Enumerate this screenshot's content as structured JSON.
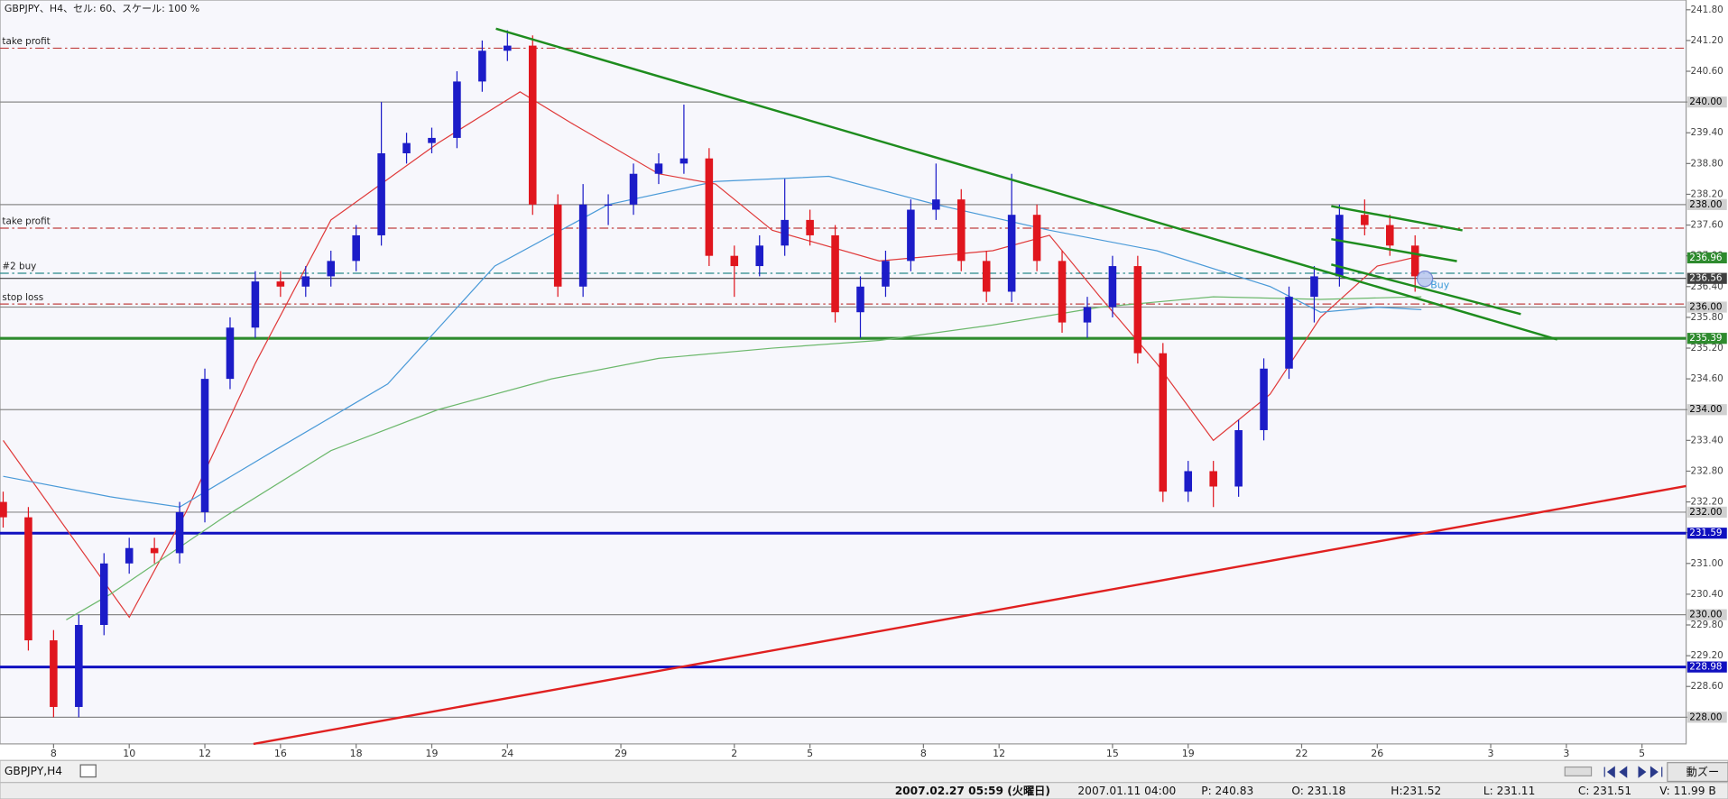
{
  "chart_data": {
    "type": "candlestick",
    "title": "GBPJPY、H4、セル: 60、スケール: 100 %",
    "up_color": "#1c1cc8",
    "down_color": "#e0161e",
    "x": [
      0,
      4,
      8,
      12,
      16,
      20,
      24,
      28,
      32,
      36,
      40,
      44,
      48,
      52,
      56,
      60,
      64,
      68,
      72,
      76,
      80,
      84,
      88,
      92,
      96,
      100,
      104,
      108,
      112,
      116,
      120,
      124,
      128,
      132,
      136,
      140,
      144,
      148,
      152,
      156,
      160,
      164,
      168,
      172,
      176,
      180,
      184,
      188,
      192,
      196,
      200,
      204,
      208,
      212,
      216,
      220,
      224
    ],
    "open": [
      232.2,
      231.9,
      229.5,
      228.2,
      229.8,
      231.0,
      231.3,
      231.2,
      232.0,
      234.6,
      235.6,
      236.5,
      236.4,
      236.6,
      236.9,
      237.4,
      239.0,
      239.2,
      239.3,
      240.4,
      241.0,
      241.1,
      238.0,
      236.4,
      238.0,
      238.0,
      238.6,
      238.8,
      238.9,
      237.0,
      236.8,
      237.2,
      237.7,
      237.4,
      235.9,
      236.4,
      236.9,
      237.9,
      238.1,
      236.9,
      236.3,
      237.8,
      236.9,
      235.7,
      236.0,
      236.8,
      235.1,
      232.4,
      232.8,
      232.5,
      233.6,
      234.8,
      236.2,
      236.6,
      237.8,
      237.6,
      237.2
    ],
    "high": [
      232.4,
      232.1,
      229.7,
      230.0,
      231.2,
      231.5,
      231.5,
      232.2,
      234.8,
      235.8,
      236.7,
      236.7,
      236.8,
      237.1,
      237.6,
      240.0,
      239.4,
      239.5,
      240.6,
      241.2,
      241.4,
      241.3,
      238.2,
      238.4,
      238.2,
      238.8,
      239.0,
      239.95,
      239.1,
      237.2,
      237.4,
      238.5,
      237.9,
      237.6,
      236.6,
      237.1,
      238.1,
      238.8,
      238.3,
      237.1,
      238.6,
      238.0,
      237.1,
      236.2,
      237.0,
      237.0,
      235.3,
      233.0,
      233.0,
      233.8,
      235.0,
      236.4,
      236.8,
      238.0,
      238.1,
      237.8,
      237.4
    ],
    "low": [
      231.7,
      229.3,
      228.0,
      228.0,
      229.6,
      230.8,
      231.0,
      231.0,
      231.8,
      234.4,
      235.4,
      236.2,
      236.2,
      236.4,
      236.7,
      237.2,
      238.8,
      239.0,
      239.1,
      240.2,
      240.8,
      237.8,
      236.2,
      236.2,
      237.6,
      237.8,
      238.4,
      238.6,
      236.8,
      236.2,
      236.6,
      237.0,
      237.2,
      235.7,
      235.4,
      236.2,
      236.7,
      237.7,
      236.7,
      236.1,
      236.1,
      236.7,
      235.5,
      235.4,
      235.8,
      234.9,
      232.2,
      232.2,
      232.1,
      232.3,
      233.4,
      234.6,
      235.7,
      236.4,
      237.4,
      237.0,
      236.3
    ],
    "close": [
      231.9,
      229.5,
      228.2,
      229.8,
      231.0,
      231.3,
      231.2,
      232.0,
      234.6,
      235.6,
      236.5,
      236.4,
      236.6,
      236.9,
      237.4,
      239.0,
      239.2,
      239.3,
      240.4,
      241.0,
      241.1,
      238.0,
      236.4,
      238.0,
      238.0,
      238.6,
      238.8,
      238.9,
      237.0,
      236.8,
      237.2,
      237.7,
      237.4,
      235.9,
      236.4,
      236.9,
      237.9,
      238.1,
      236.9,
      236.3,
      237.8,
      236.9,
      235.7,
      236.0,
      236.8,
      235.1,
      232.4,
      232.8,
      232.5,
      233.6,
      234.8,
      236.2,
      236.6,
      237.8,
      237.6,
      237.2,
      236.6
    ],
    "xlim": [
      -0.5,
      267
    ],
    "xticks": [
      {
        "value": 8,
        "label": "8"
      },
      {
        "value": 20,
        "label": "10"
      },
      {
        "value": 32,
        "label": "12"
      },
      {
        "value": 44,
        "label": "16"
      },
      {
        "value": 56,
        "label": "18"
      },
      {
        "value": 68,
        "label": "19"
      },
      {
        "value": 80,
        "label": "24"
      },
      {
        "value": 98,
        "label": "29"
      },
      {
        "value": 116,
        "label": "2"
      },
      {
        "value": 128,
        "label": "5"
      },
      {
        "value": 146,
        "label": "8"
      },
      {
        "value": 158,
        "label": "12"
      },
      {
        "value": 176,
        "label": "15"
      },
      {
        "value": 188,
        "label": "19"
      },
      {
        "value": 206,
        "label": "22"
      },
      {
        "value": 218,
        "label": "26"
      },
      {
        "value": 236,
        "label": "3"
      },
      {
        "value": 248,
        "label": "3"
      },
      {
        "value": 260,
        "label": "5"
      }
    ],
    "ylim": [
      227.48,
      241.99
    ],
    "yticks": [
      {
        "value": 228.0,
        "label": "228.00"
      },
      {
        "value": 228.6,
        "label": "228.60"
      },
      {
        "value": 229.2,
        "label": "229.20"
      },
      {
        "value": 229.8,
        "label": "229.80"
      },
      {
        "value": 230.4,
        "label": "230.40"
      },
      {
        "value": 231.0,
        "label": "231.00"
      },
      {
        "value": 231.6,
        "label": "231.60"
      },
      {
        "value": 232.2,
        "label": "232.20"
      },
      {
        "value": 232.8,
        "label": "232.80"
      },
      {
        "value": 233.4,
        "label": "233.40"
      },
      {
        "value": 234.0,
        "label": "234.00"
      },
      {
        "value": 234.6,
        "label": "234.60"
      },
      {
        "value": 235.2,
        "label": "235.20"
      },
      {
        "value": 235.8,
        "label": "235.80"
      },
      {
        "value": 236.4,
        "label": "236.40"
      },
      {
        "value": 237.0,
        "label": "237.00"
      },
      {
        "value": 237.6,
        "label": "237.60"
      },
      {
        "value": 238.2,
        "label": "238.20"
      },
      {
        "value": 238.8,
        "label": "238.80"
      },
      {
        "value": 239.4,
        "label": "239.40"
      },
      {
        "value": 240.0,
        "label": "240.00"
      },
      {
        "value": 240.6,
        "label": "240.60"
      },
      {
        "value": 241.2,
        "label": "241.20"
      },
      {
        "value": 241.8,
        "label": "241.80"
      }
    ],
    "indicators": [
      {
        "color": "#e03a3a",
        "x": [
          0,
          20,
          29,
          40,
          52,
          69,
          82,
          90,
          104,
          113,
          122,
          139,
          157,
          166,
          174,
          183,
          192,
          201,
          209,
          218,
          225
        ],
        "values": [
          233.4,
          229.95,
          232.0,
          234.9,
          237.7,
          239.2,
          240.2,
          239.6,
          238.6,
          238.4,
          237.5,
          236.9,
          237.1,
          237.4,
          236.2,
          234.9,
          233.4,
          234.3,
          235.8,
          236.8,
          237.0
        ]
      },
      {
        "color": "#4a9ad8",
        "x": [
          0,
          17,
          28,
          43,
          61,
          78,
          96,
          113,
          131,
          148,
          166,
          183,
          201,
          209,
          218,
          225
        ],
        "values": [
          232.7,
          232.3,
          232.1,
          233.2,
          234.5,
          236.8,
          238.0,
          238.45,
          238.55,
          238.0,
          237.5,
          237.1,
          236.4,
          235.9,
          236.0,
          235.95
        ]
      },
      {
        "color": "#6cb86c",
        "x": [
          10,
          17,
          35,
          52,
          69,
          87,
          104,
          122,
          139,
          157,
          174,
          192,
          209,
          225
        ],
        "values": [
          229.9,
          230.4,
          231.9,
          233.2,
          234.0,
          234.6,
          235.0,
          235.2,
          235.35,
          235.65,
          236.0,
          236.2,
          236.15,
          236.2
        ]
      }
    ],
    "price_lines": [
      {
        "value": 241.05,
        "name": "take profit",
        "color": "#c04040",
        "width": 1,
        "dash": "dashdot"
      },
      {
        "value": 240.0,
        "label": "240.00",
        "color": "#8a8a8a",
        "text_color": "#000000",
        "width": 1,
        "dash": "solid"
      },
      {
        "value": 238.0,
        "label": "238.00",
        "color": "#8a8a8a",
        "text_color": "#000000",
        "width": 1,
        "dash": "solid"
      },
      {
        "value": 237.54,
        "name": "take profit",
        "color": "#c04040",
        "width": 1,
        "dash": "dashdot"
      },
      {
        "value": 236.96,
        "label": "236.96",
        "color": "#2e8b2e",
        "text_color": "#ffffff",
        "width": 1,
        "dash": "none"
      },
      {
        "value": 236.66,
        "name": "#2 buy",
        "color": "#2a8a8a",
        "width": 1,
        "dash": "dashdot"
      },
      {
        "value": 236.56,
        "label": "236.56",
        "color": "#404040",
        "text_color": "#ffffff",
        "width": 1,
        "dash": "solid"
      },
      {
        "value": 236.06,
        "name": "stop loss",
        "color": "#c04040",
        "width": 1,
        "dash": "dashdot"
      },
      {
        "value": 236.0,
        "label": "236.00",
        "color": "#8a8a8a",
        "text_color": "#000000",
        "width": 1,
        "dash": "solid"
      },
      {
        "value": 235.39,
        "label": "235.39",
        "color": "#2e8b2e",
        "text_color": "#ffffff",
        "width": 2.5,
        "dash": "solid"
      },
      {
        "value": 234.0,
        "label": "234.00",
        "color": "#8a8a8a",
        "text_color": "#000000",
        "width": 1,
        "dash": "solid"
      },
      {
        "value": 232.0,
        "label": "232.00",
        "color": "#8a8a8a",
        "text_color": "#000000",
        "width": 1,
        "dash": "solid"
      },
      {
        "value": 231.59,
        "label": "231.59",
        "color": "#1010c0",
        "text_color": "#ffffff",
        "width": 2.5,
        "dash": "solid"
      },
      {
        "value": 230.0,
        "label": "230.00",
        "color": "#8a8a8a",
        "text_color": "#000000",
        "width": 1,
        "dash": "solid"
      },
      {
        "value": 228.98,
        "label": "228.98",
        "color": "#1010c0",
        "text_color": "#ffffff",
        "width": 2.5,
        "dash": "solid"
      },
      {
        "value": 228.0,
        "label": "228.00",
        "color": "#8a8a8a",
        "text_color": "#000000",
        "width": 1,
        "dash": "solid"
      }
    ],
    "trade_marker": {
      "label": "Buy"
    }
  },
  "ui": {
    "tab": "GBPJPY,H4",
    "zoom_button": "動ズー",
    "status": [
      "2007.02.27 05:59 (火曜日)",
      "2007.01.11 04:00",
      "P: 240.83",
      "O: 231.18",
      "H:231.52",
      "L: 231.11",
      "C: 231.51",
      "V: 11.99 B"
    ]
  }
}
